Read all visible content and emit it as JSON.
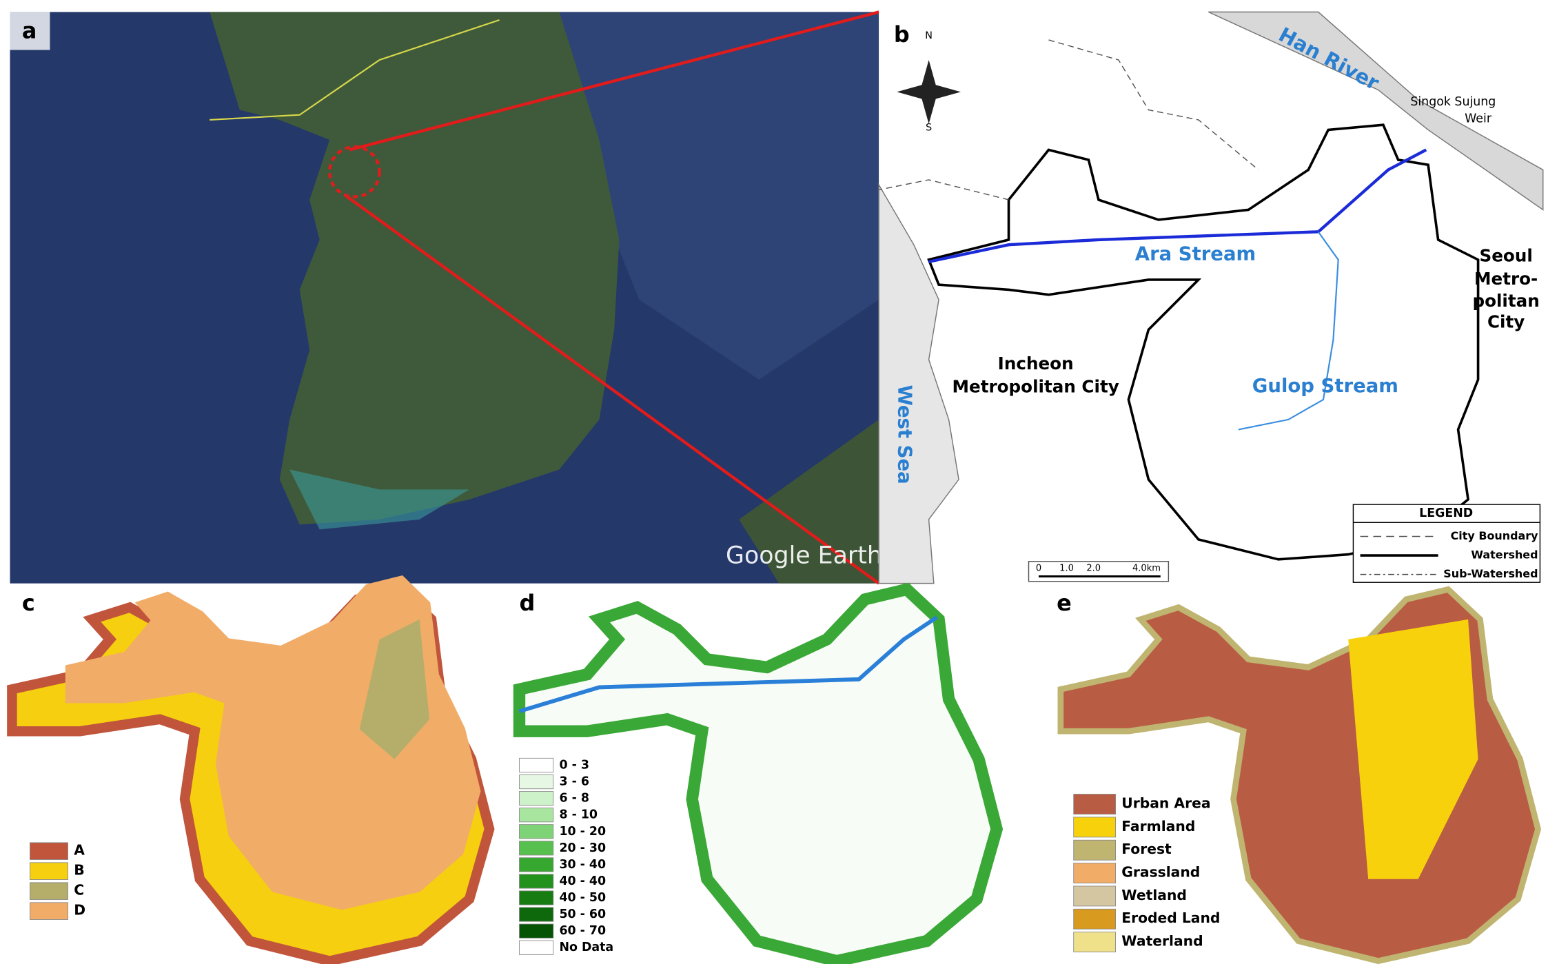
{
  "panels": {
    "a": {
      "label": "a",
      "watermark": "Google Earth"
    },
    "b": {
      "label": "b",
      "compass": [
        "N",
        "S"
      ],
      "river": "Han River",
      "weir": [
        "Singok Sujung",
        "Weir"
      ],
      "seoul": [
        "Seoul",
        "Metro-",
        "politan",
        "City"
      ],
      "ara": "Ara Stream",
      "incheon": [
        "Incheon",
        "Metropolitan City"
      ],
      "gulop": "Gulop Stream",
      "sea": "West Sea",
      "legend": {
        "title": "LEGEND",
        "items": [
          "City Boundary",
          "Watershed",
          "Sub-Watershed"
        ]
      },
      "scale": [
        "0",
        "1.0",
        "2.0",
        "4.0km"
      ]
    },
    "c": {
      "label": "c",
      "legend": [
        {
          "name": "A",
          "color": "#c0553c"
        },
        {
          "name": "B",
          "color": "#f5cf10"
        },
        {
          "name": "C",
          "color": "#b5ae6a"
        },
        {
          "name": "D",
          "color": "#f1ac68"
        }
      ]
    },
    "d": {
      "label": "d",
      "legend": [
        {
          "name": "0 - 3",
          "color": "#ffffff"
        },
        {
          "name": "3 - 6",
          "color": "#e6f8e3"
        },
        {
          "name": "6 - 8",
          "color": "#cdf1c8"
        },
        {
          "name": "8 - 10",
          "color": "#a8e6a0"
        },
        {
          "name": "10 - 20",
          "color": "#7ed376"
        },
        {
          "name": "20 - 30",
          "color": "#58c04f"
        },
        {
          "name": "30 - 40",
          "color": "#36a82f"
        },
        {
          "name": "40 - 40",
          "color": "#23921d"
        },
        {
          "name": "40 - 50",
          "color": "#177d13"
        },
        {
          "name": "50 - 60",
          "color": "#0d690b"
        },
        {
          "name": "60 - 70",
          "color": "#055305"
        },
        {
          "name": "No Data",
          "color": "#ffffff"
        }
      ]
    },
    "e": {
      "label": "e",
      "legend": [
        {
          "name": "Urban Area",
          "color": "#b95c44"
        },
        {
          "name": "Farmland",
          "color": "#f7d20c"
        },
        {
          "name": "Forest",
          "color": "#bfb470"
        },
        {
          "name": "Grassland",
          "color": "#f1ac68"
        },
        {
          "name": "Wetland",
          "color": "#d4c6a0"
        },
        {
          "name": "Eroded Land",
          "color": "#d99a20"
        },
        {
          "name": "Waterland",
          "color": "#efe08a"
        }
      ]
    }
  }
}
